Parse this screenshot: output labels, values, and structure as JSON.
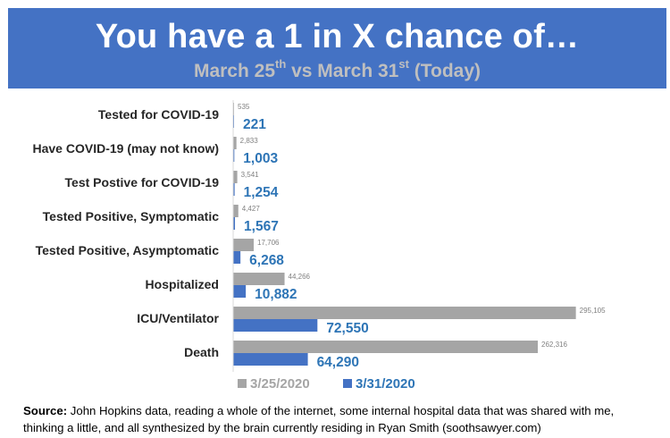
{
  "header": {
    "title": "You have a 1 in X chance of…",
    "subtitle_a": "March 25",
    "subtitle_a_sup": "th",
    "subtitle_mid": " vs March 31",
    "subtitle_b_sup": "st",
    "subtitle_end": " (Today)"
  },
  "colors": {
    "banner": "#4472c4",
    "series_old": "#a5a5a5",
    "series_new": "#4472c4",
    "label_new": "#2e75b6"
  },
  "chart_data": {
    "type": "bar",
    "orientation": "horizontal",
    "categories": [
      "Tested for COVID-19",
      "Have COVID-19 (may not know)",
      "Test Postive for COVID-19",
      "Tested Positive, Symptomatic",
      "Tested Positive, Asymptomatic",
      "Hospitalized",
      "ICU/Ventilator",
      "Death"
    ],
    "series": [
      {
        "name": "3/25/2020",
        "values": [
          535,
          2833,
          3541,
          4427,
          17706,
          44266,
          295105,
          262316
        ],
        "labels": [
          "535",
          "2,833",
          "3,541",
          "4,427",
          "17,706",
          "44,266",
          "295,105",
          "262,316"
        ]
      },
      {
        "name": "3/31/2020",
        "values": [
          221,
          1003,
          1254,
          1567,
          6268,
          10882,
          72550,
          64290
        ],
        "labels": [
          "221",
          "1,003",
          "1,254",
          "1,567",
          "6,268",
          "10,882",
          "72,550",
          "64,290"
        ]
      }
    ],
    "xlim": [
      0,
      300000
    ],
    "grid": false,
    "legend_position": "bottom"
  },
  "footer": {
    "source_label": "Source:",
    "source_text": " John Hopkins data, reading a whole of the internet, some internal hospital data that was shared with me, thinking a little, and all synthesized by the brain currently residing in Ryan Smith (soothsawyer.com)"
  }
}
